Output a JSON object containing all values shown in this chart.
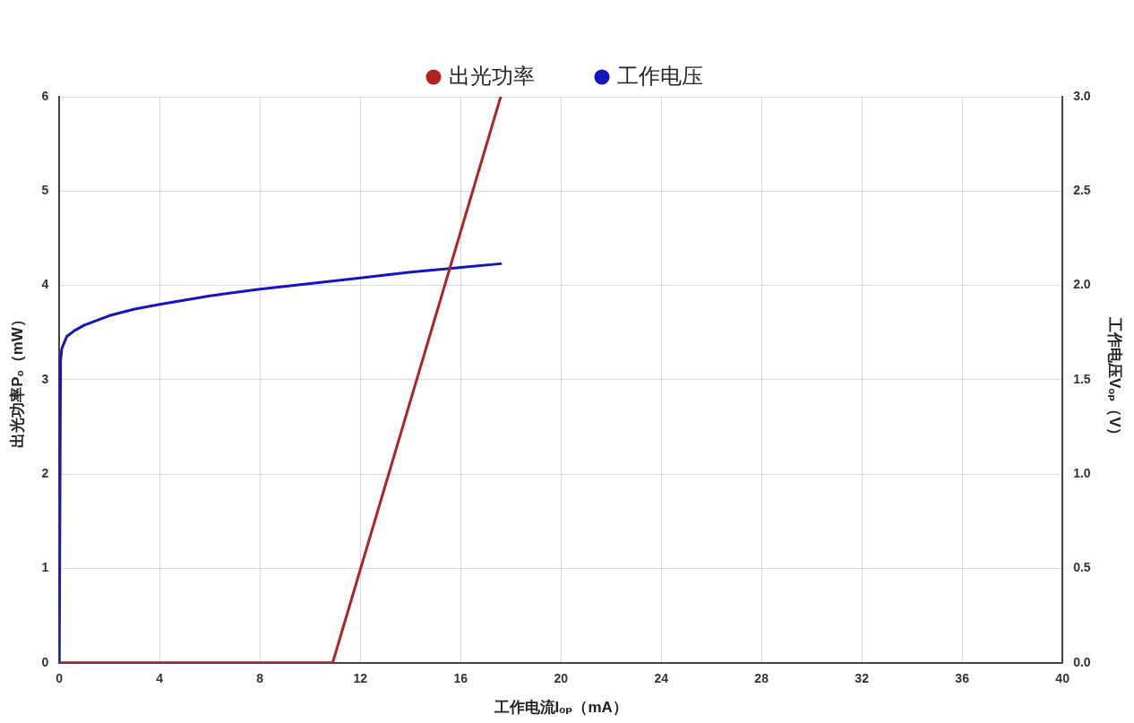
{
  "chart_data": {
    "type": "line",
    "xlabel": "工作电流Iₒₚ（mA）",
    "ylabel": "出光功率Pₒ（mW）",
    "y2label": "工作电压Vₒₚ（V）",
    "xlim": [
      0,
      40
    ],
    "xticks": [
      0,
      4,
      8,
      12,
      16,
      20,
      24,
      28,
      32,
      36,
      40
    ],
    "ylim": [
      0,
      6
    ],
    "yticks": [
      0,
      1,
      2,
      3,
      4,
      5,
      6
    ],
    "y2lim": [
      0,
      3
    ],
    "y2ticks": [
      {
        "value": 0,
        "label": "0.0"
      },
      {
        "value": 0.5,
        "label": "0.5"
      },
      {
        "value": 1,
        "label": "1.0"
      },
      {
        "value": 1.5,
        "label": "1.5"
      },
      {
        "value": 2,
        "label": "2.0"
      },
      {
        "value": 2.5,
        "label": "2.5"
      },
      {
        "value": 3,
        "label": "3.0"
      }
    ],
    "grid": true,
    "legend": "top",
    "marker": "none",
    "line_style": "solid",
    "series": [
      {
        "name": "出光功率",
        "color": "#b22222",
        "x": [
          0,
          10.9,
          17.6
        ],
        "values": [
          0,
          0,
          6
        ]
      },
      {
        "name": "工作电压",
        "color": "#1414c0",
        "axis": "y2",
        "x": [
          0,
          0.05,
          0.1,
          0.3,
          0.6,
          1,
          2,
          3,
          4,
          6,
          8,
          10,
          12,
          14,
          16,
          17.6
        ],
        "values": [
          0,
          1.6,
          1.665,
          1.73,
          1.76,
          1.79,
          1.84,
          1.875,
          1.9,
          1.945,
          1.98,
          2.01,
          2.04,
          2.07,
          2.095,
          2.115
        ]
      }
    ]
  }
}
